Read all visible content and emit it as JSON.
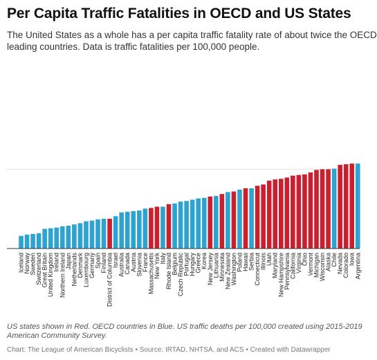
{
  "header": {
    "title": "Per Capita Traffic Fatalities in OECD and US States",
    "subtitle_line1": "The United States as a whole has a per capita traffic fatality rate of about twice the OECD",
    "subtitle_line2": "leading countries. Data is traffic fatalities per 100,000 people."
  },
  "notes": {
    "line1": "US states shown in Red. OECD countries in Blue. US traffic deaths per 100,000 created using 2015-2019",
    "line2": "American Community Survey."
  },
  "footer": "Chart: The League of American Bicyclists • Source: IRTAD, NHTSA, and ACS • Created with Datawrapper",
  "colors": {
    "oecd": "#2ea3d0",
    "us_state": "#c8202f",
    "baseline": "#333333",
    "grid": "#e3e3e3"
  },
  "chart_data": {
    "type": "bar",
    "title": "Per Capita Traffic Fatalities in OECD and US States",
    "ylabel": "",
    "ylim": [
      0,
      25
    ],
    "grid": true,
    "y_gridlines": [
      12.5
    ],
    "categories": [
      "Iceland",
      "Norway",
      "Sweden",
      "Switzerland",
      "Great Britain",
      "United Kingdom",
      "Ireland",
      "Northern Ireland",
      "Japan",
      "Netherlands",
      "Denmark",
      "Luxembourg",
      "Germany",
      "Spain",
      "Finland",
      "District of Columbia",
      "Israel",
      "Australia",
      "Canada",
      "Austria",
      "Slovenia",
      "France",
      "Massachusetts",
      "New York",
      "Italy",
      "Rhode Island",
      "Belgium",
      "Czech Republic",
      "Portugal",
      "Hungary",
      "Greece",
      "Korea",
      "New Jersey",
      "Lithuania",
      "Minnesota",
      "New Zealand",
      "Washington",
      "Poland",
      "Hawaii",
      "Serbia",
      "Connecticut",
      "Illinois",
      "Utah",
      "Maryland",
      "New Hampshire",
      "Pennsylvania",
      "California",
      "Virginia",
      "Ohio",
      "Vermont",
      "Michigan",
      "Wisconsin",
      "Alaska",
      "Chile",
      "Nevada",
      "Colorado",
      "Iowa",
      "Argentina"
    ],
    "groups": [
      "OECD",
      "OECD",
      "OECD",
      "OECD",
      "OECD",
      "OECD",
      "OECD",
      "OECD",
      "OECD",
      "OECD",
      "OECD",
      "OECD",
      "OECD",
      "OECD",
      "OECD",
      "US",
      "OECD",
      "OECD",
      "OECD",
      "OECD",
      "OECD",
      "OECD",
      "US",
      "US",
      "OECD",
      "US",
      "OECD",
      "OECD",
      "OECD",
      "OECD",
      "OECD",
      "OECD",
      "US",
      "OECD",
      "US",
      "OECD",
      "US",
      "OECD",
      "US",
      "OECD",
      "US",
      "US",
      "US",
      "US",
      "US",
      "US",
      "US",
      "US",
      "US",
      "US",
      "US",
      "US",
      "US",
      "OECD",
      "US",
      "US",
      "US",
      "OECD"
    ],
    "values": [
      2.0,
      2.2,
      2.3,
      2.4,
      3.1,
      3.2,
      3.3,
      3.5,
      3.6,
      3.8,
      4.0,
      4.3,
      4.4,
      4.6,
      4.7,
      4.7,
      5.1,
      5.7,
      5.8,
      5.9,
      6.0,
      6.3,
      6.4,
      6.6,
      6.6,
      7.0,
      7.1,
      7.4,
      7.5,
      7.7,
      7.9,
      8.0,
      8.2,
      8.3,
      8.6,
      8.9,
      9.0,
      9.3,
      9.5,
      9.5,
      9.9,
      10.1,
      10.7,
      10.9,
      11.0,
      11.2,
      11.5,
      11.6,
      11.7,
      12.0,
      12.4,
      12.5,
      12.5,
      12.6,
      13.2,
      13.3,
      13.4,
      13.4
    ]
  }
}
